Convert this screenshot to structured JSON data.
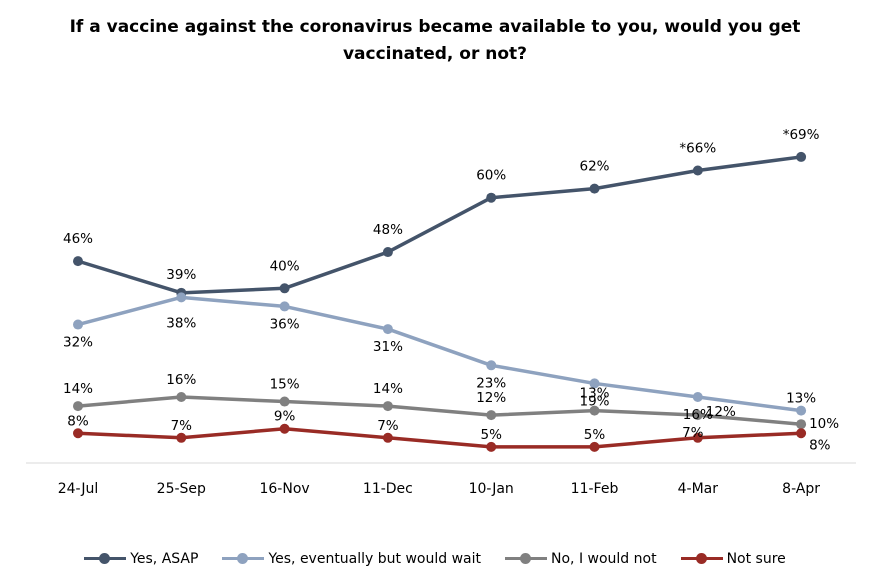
{
  "chart_data": {
    "type": "line",
    "title": "If a vaccine against the coronavirus became available to you, would you get vaccinated, or not?",
    "categories": [
      "24-Jul",
      "25-Sep",
      "16-Nov",
      "11-Dec",
      "10-Jan",
      "11-Feb",
      "4-Mar",
      "8-Apr"
    ],
    "ylim": [
      0,
      80
    ],
    "grid": false,
    "legend": "bottom",
    "series": [
      {
        "name": "Yes, ASAP",
        "color": "#44546a",
        "values": [
          46,
          39,
          40,
          48,
          60,
          62,
          66,
          69
        ],
        "labels": [
          "46%",
          "39%",
          "40%",
          "48%",
          "60%",
          "62%",
          "*66%",
          "*69%"
        ]
      },
      {
        "name": "Yes, eventually but would wait",
        "color": "#8ea2bf",
        "values": [
          32,
          38,
          36,
          31,
          23,
          19,
          16,
          13
        ],
        "labels": [
          "32%",
          "38%",
          "36%",
          "31%",
          "23%",
          "19%",
          "16%",
          "13%"
        ]
      },
      {
        "name": "No, I would not",
        "color": "#808080",
        "values": [
          14,
          16,
          15,
          14,
          12,
          13,
          12,
          10
        ],
        "labels": [
          "14%",
          "16%",
          "15%",
          "14%",
          "12%",
          "13%",
          "12%",
          "10%"
        ]
      },
      {
        "name": "Not sure",
        "color": "#992b25",
        "values": [
          8,
          7,
          9,
          7,
          5,
          5,
          7,
          8
        ],
        "labels": [
          "8%",
          "7%",
          "9%",
          "7%",
          "5%",
          "5%",
          "7%",
          "8%"
        ]
      }
    ]
  }
}
